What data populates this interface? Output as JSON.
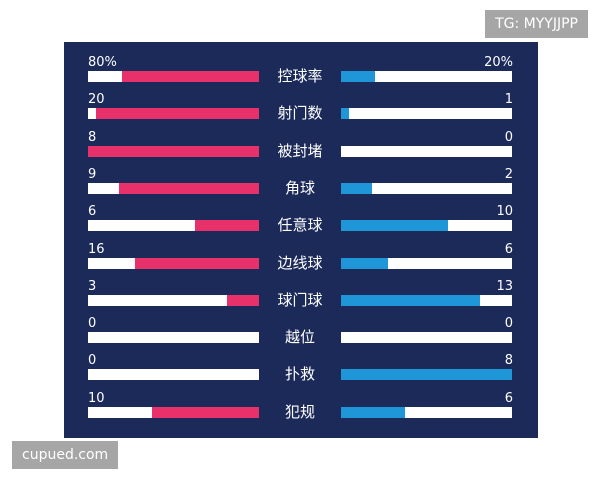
{
  "watermarks": {
    "top_right": "TG: MYYJJPP",
    "bottom_left": "cupued.com"
  },
  "colors": {
    "background": "#1c2a5a",
    "left_team": "#e8306b",
    "right_team": "#1e96d8",
    "track": "#ffffff"
  },
  "chart_data": {
    "type": "bar",
    "title": "",
    "rows": [
      {
        "label": "控球率",
        "left": 80,
        "right": 20,
        "left_text": "80%",
        "right_text": "20%"
      },
      {
        "label": "射门数",
        "left": 20,
        "right": 1,
        "left_text": "20",
        "right_text": "1"
      },
      {
        "label": "被封堵",
        "left": 8,
        "right": 0,
        "left_text": "8",
        "right_text": "0"
      },
      {
        "label": "角球",
        "left": 9,
        "right": 2,
        "left_text": "9",
        "right_text": "2"
      },
      {
        "label": "任意球",
        "left": 6,
        "right": 10,
        "left_text": "6",
        "right_text": "10"
      },
      {
        "label": "边线球",
        "left": 16,
        "right": 6,
        "left_text": "16",
        "right_text": "6"
      },
      {
        "label": "球门球",
        "left": 3,
        "right": 13,
        "left_text": "3",
        "right_text": "13"
      },
      {
        "label": "越位",
        "left": 0,
        "right": 0,
        "left_text": "0",
        "right_text": "0"
      },
      {
        "label": "扑救",
        "left": 0,
        "right": 8,
        "left_text": "0",
        "right_text": "8"
      },
      {
        "label": "犯规",
        "left": 10,
        "right": 6,
        "left_text": "10",
        "right_text": "6"
      }
    ]
  }
}
